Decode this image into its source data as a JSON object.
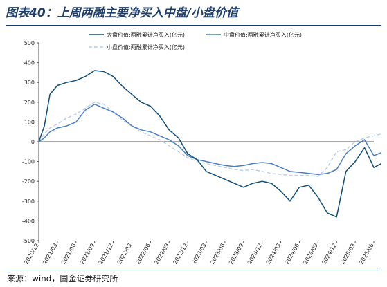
{
  "header": {
    "title": "图表40：上周两融主要净买入中盘/小盘价值"
  },
  "footer": {
    "source": "来源：wind，国金证券研究所"
  },
  "colors": {
    "large": "#0f4d75",
    "mid": "#4a7ec4",
    "small": "#b7cde8",
    "axis": "#555555",
    "title": "#1f3f6a"
  },
  "chart_data": {
    "type": "line",
    "title": "",
    "xlabel": "",
    "ylabel": "",
    "ylim": [
      -500,
      500
    ],
    "yticks": [
      -500,
      -400,
      -300,
      -200,
      -100,
      0,
      100,
      200,
      300,
      400,
      500
    ],
    "x_tick_labels": [
      "2020/12",
      "2021/03",
      "2021/06",
      "2021/09",
      "2021/12",
      "2022/03",
      "2022/06",
      "2022/09",
      "2022/12",
      "2023/03",
      "2023/06",
      "2023/09",
      "2023/12",
      "2024/03",
      "2024/06",
      "2024/09",
      "2024/12",
      "2025/03",
      "2025/06"
    ],
    "grid": false,
    "legend_position": "top",
    "x_index": [
      0,
      0.3,
      0.6,
      1,
      1.5,
      2,
      2.5,
      3,
      3.5,
      4,
      4.5,
      5,
      5.5,
      6,
      6.5,
      7,
      7.5,
      8,
      8.5,
      9,
      9.5,
      10,
      10.5,
      11,
      11.5,
      12,
      12.5,
      13,
      13.5,
      14,
      14.5,
      15,
      15.5,
      16,
      16.5,
      17,
      17.5,
      18,
      18.4
    ],
    "series": [
      {
        "name": "大盘价值:两融累计净买入(亿元)",
        "key": "large",
        "values": [
          0,
          80,
          240,
          285,
          300,
          310,
          330,
          360,
          355,
          330,
          280,
          240,
          200,
          180,
          130,
          60,
          20,
          -60,
          -90,
          -150,
          -170,
          -190,
          -210,
          -230,
          -210,
          -200,
          -210,
          -250,
          -300,
          -230,
          -220,
          -280,
          -360,
          -380,
          -150,
          -100,
          -30,
          -130,
          -110
        ]
      },
      {
        "name": "中盘价值:两融累计净买入(亿元)",
        "key": "mid",
        "values": [
          0,
          20,
          50,
          70,
          80,
          100,
          160,
          190,
          170,
          150,
          120,
          80,
          60,
          50,
          30,
          10,
          -20,
          -70,
          -90,
          -100,
          -110,
          -120,
          -125,
          -120,
          -110,
          -105,
          -110,
          -130,
          -150,
          -155,
          -160,
          -165,
          -160,
          -140,
          -60,
          -20,
          10,
          -70,
          -55
        ]
      },
      {
        "name": "小盘价值:两融累计净买入(亿元)",
        "key": "small",
        "values": [
          0,
          40,
          70,
          90,
          120,
          140,
          170,
          200,
          190,
          150,
          110,
          80,
          50,
          30,
          10,
          -20,
          -50,
          -80,
          -100,
          -110,
          -120,
          -130,
          -140,
          -145,
          -140,
          -150,
          -160,
          -165,
          -170,
          -170,
          -170,
          -175,
          -130,
          -50,
          -40,
          0,
          20,
          30,
          40
        ]
      }
    ]
  }
}
